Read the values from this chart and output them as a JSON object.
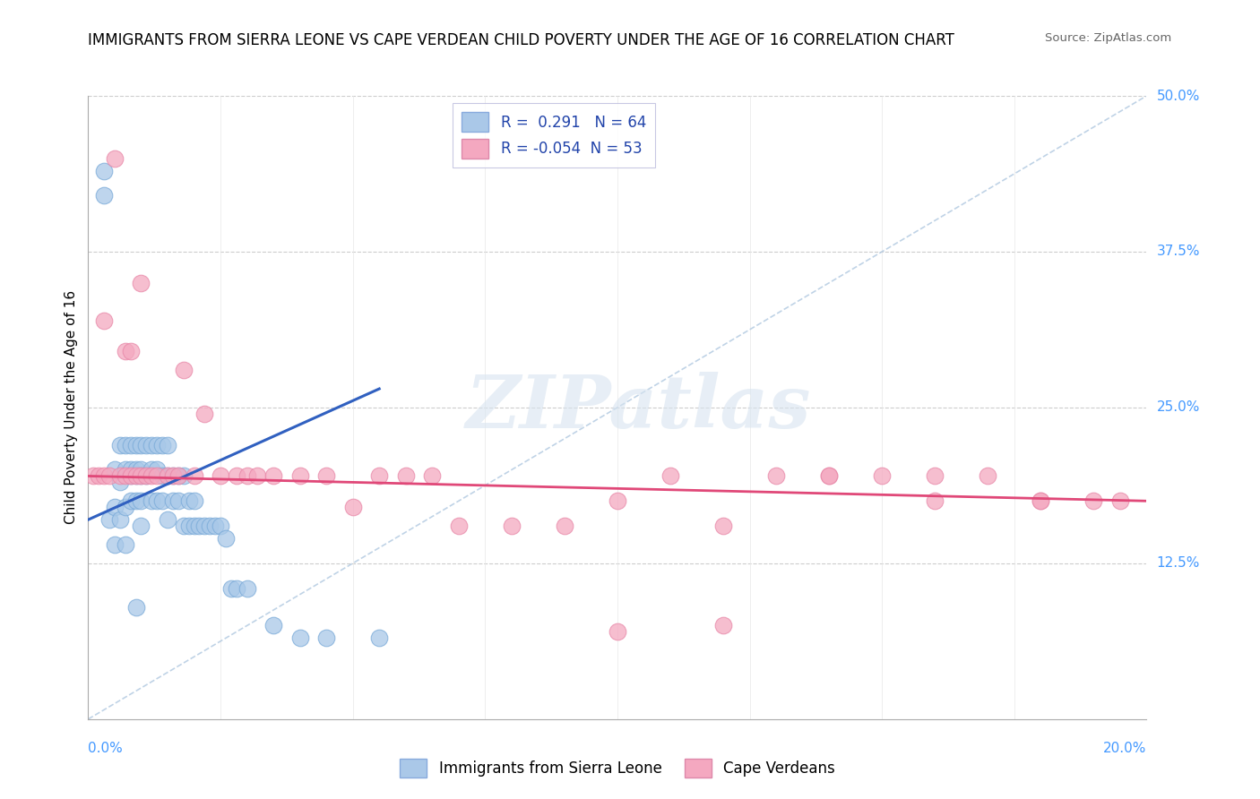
{
  "title": "IMMIGRANTS FROM SIERRA LEONE VS CAPE VERDEAN CHILD POVERTY UNDER THE AGE OF 16 CORRELATION CHART",
  "source": "Source: ZipAtlas.com",
  "ylabel": "Child Poverty Under the Age of 16",
  "xmin": 0.0,
  "xmax": 0.2,
  "ymin": 0.0,
  "ymax": 0.5,
  "blue_color": "#a8c8e8",
  "pink_color": "#f4a8c0",
  "blue_line_color": "#3060c0",
  "pink_line_color": "#e04878",
  "legend_blue_fill": "#aac8e8",
  "legend_pink_fill": "#f4a8c0",
  "r_blue": 0.291,
  "n_blue": 64,
  "r_pink": -0.054,
  "n_pink": 53,
  "watermark": "ZIPatlas",
  "blue_line_x": [
    0.0,
    0.055
  ],
  "blue_line_y": [
    0.16,
    0.265
  ],
  "pink_line_x": [
    0.0,
    0.2
  ],
  "pink_line_y": [
    0.195,
    0.175
  ],
  "diag_line_x": [
    0.0,
    0.2
  ],
  "diag_line_y": [
    0.0,
    0.5
  ],
  "blue_scatter_x": [
    0.003,
    0.003,
    0.004,
    0.005,
    0.005,
    0.005,
    0.006,
    0.006,
    0.006,
    0.007,
    0.007,
    0.007,
    0.007,
    0.008,
    0.008,
    0.008,
    0.008,
    0.009,
    0.009,
    0.009,
    0.009,
    0.01,
    0.01,
    0.01,
    0.01,
    0.01,
    0.011,
    0.011,
    0.012,
    0.012,
    0.012,
    0.013,
    0.013,
    0.013,
    0.014,
    0.014,
    0.014,
    0.015,
    0.015,
    0.015,
    0.016,
    0.016,
    0.017,
    0.017,
    0.018,
    0.018,
    0.019,
    0.019,
    0.02,
    0.02,
    0.021,
    0.022,
    0.023,
    0.024,
    0.025,
    0.026,
    0.027,
    0.028,
    0.03,
    0.035,
    0.04,
    0.045,
    0.055,
    0.009
  ],
  "blue_scatter_y": [
    0.42,
    0.44,
    0.16,
    0.2,
    0.17,
    0.14,
    0.22,
    0.19,
    0.16,
    0.22,
    0.2,
    0.17,
    0.14,
    0.22,
    0.2,
    0.195,
    0.175,
    0.22,
    0.2,
    0.195,
    0.175,
    0.22,
    0.2,
    0.195,
    0.175,
    0.155,
    0.22,
    0.195,
    0.22,
    0.2,
    0.175,
    0.22,
    0.2,
    0.175,
    0.22,
    0.195,
    0.175,
    0.22,
    0.195,
    0.16,
    0.195,
    0.175,
    0.195,
    0.175,
    0.195,
    0.155,
    0.175,
    0.155,
    0.175,
    0.155,
    0.155,
    0.155,
    0.155,
    0.155,
    0.155,
    0.145,
    0.105,
    0.105,
    0.105,
    0.075,
    0.065,
    0.065,
    0.065,
    0.09
  ],
  "pink_scatter_x": [
    0.001,
    0.002,
    0.003,
    0.003,
    0.004,
    0.005,
    0.006,
    0.007,
    0.007,
    0.008,
    0.008,
    0.009,
    0.01,
    0.01,
    0.011,
    0.012,
    0.013,
    0.015,
    0.016,
    0.017,
    0.018,
    0.02,
    0.022,
    0.025,
    0.028,
    0.03,
    0.032,
    0.035,
    0.04,
    0.045,
    0.05,
    0.055,
    0.06,
    0.065,
    0.07,
    0.08,
    0.09,
    0.1,
    0.11,
    0.12,
    0.13,
    0.14,
    0.15,
    0.16,
    0.17,
    0.18,
    0.19,
    0.195,
    0.1,
    0.12,
    0.18,
    0.14,
    0.16
  ],
  "pink_scatter_y": [
    0.195,
    0.195,
    0.195,
    0.32,
    0.195,
    0.45,
    0.195,
    0.195,
    0.295,
    0.195,
    0.295,
    0.195,
    0.35,
    0.195,
    0.195,
    0.195,
    0.195,
    0.195,
    0.195,
    0.195,
    0.28,
    0.195,
    0.245,
    0.195,
    0.195,
    0.195,
    0.195,
    0.195,
    0.195,
    0.195,
    0.17,
    0.195,
    0.195,
    0.195,
    0.155,
    0.155,
    0.155,
    0.175,
    0.195,
    0.155,
    0.195,
    0.195,
    0.195,
    0.175,
    0.195,
    0.175,
    0.175,
    0.175,
    0.07,
    0.075,
    0.175,
    0.195,
    0.195
  ]
}
